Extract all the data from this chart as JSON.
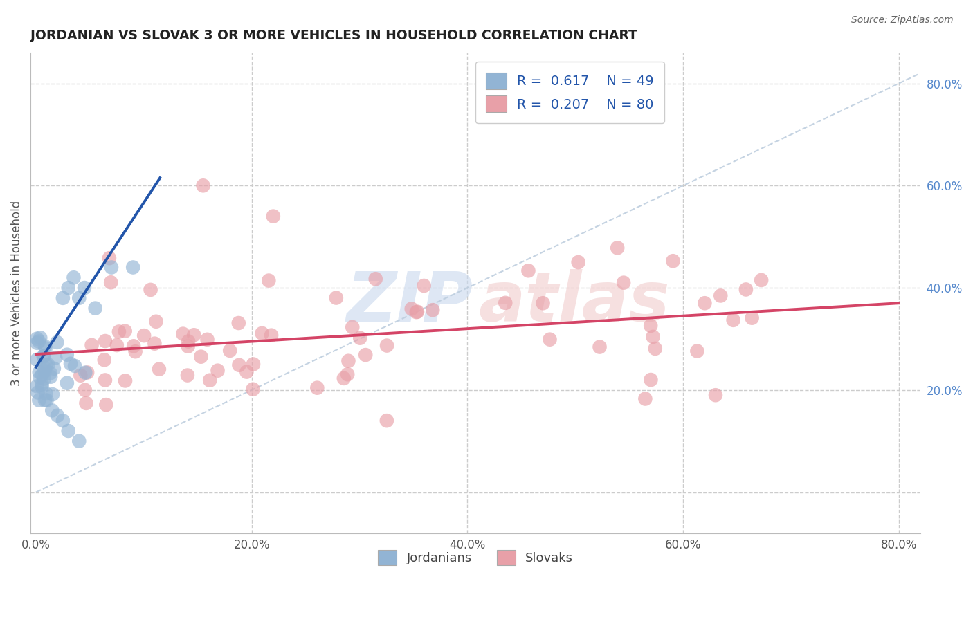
{
  "title": "JORDANIAN VS SLOVAK 3 OR MORE VEHICLES IN HOUSEHOLD CORRELATION CHART",
  "source_text": "Source: ZipAtlas.com",
  "ylabel": "3 or more Vehicles in Household",
  "xlim": [
    -0.005,
    0.82
  ],
  "ylim": [
    -0.08,
    0.86
  ],
  "x_ticks": [
    0.0,
    0.2,
    0.4,
    0.6,
    0.8
  ],
  "x_tick_labels": [
    "0.0%",
    "20.0%",
    "40.0%",
    "60.0%",
    "80.0%"
  ],
  "y_ticks": [
    0.0,
    0.2,
    0.4,
    0.6,
    0.8
  ],
  "y_tick_labels_right": [
    "",
    "20.0%",
    "40.0%",
    "60.0%",
    "80.0%"
  ],
  "blue_scatter_color": "#92B4D4",
  "pink_scatter_color": "#E8A0A8",
  "blue_line_color": "#2255AA",
  "pink_line_color": "#D44466",
  "diag_line_color": "#BBCCDD",
  "grid_color": "#CCCCCC",
  "legend_blue_label": "R =  0.617    N = 49",
  "legend_pink_label": "R =  0.207    N = 80",
  "legend_text_color": "#2255AA",
  "watermark_blue": "#C8D8EE",
  "watermark_pink": "#F0CCCC",
  "R_blue": 0.617,
  "N_blue": 49,
  "R_pink": 0.207,
  "N_pink": 80,
  "blue_line_x0": 0.0,
  "blue_line_y0": 0.245,
  "blue_line_x1": 0.115,
  "blue_line_y1": 0.615,
  "pink_line_x0": 0.0,
  "pink_line_y0": 0.27,
  "pink_line_x1": 0.8,
  "pink_line_y1": 0.37
}
